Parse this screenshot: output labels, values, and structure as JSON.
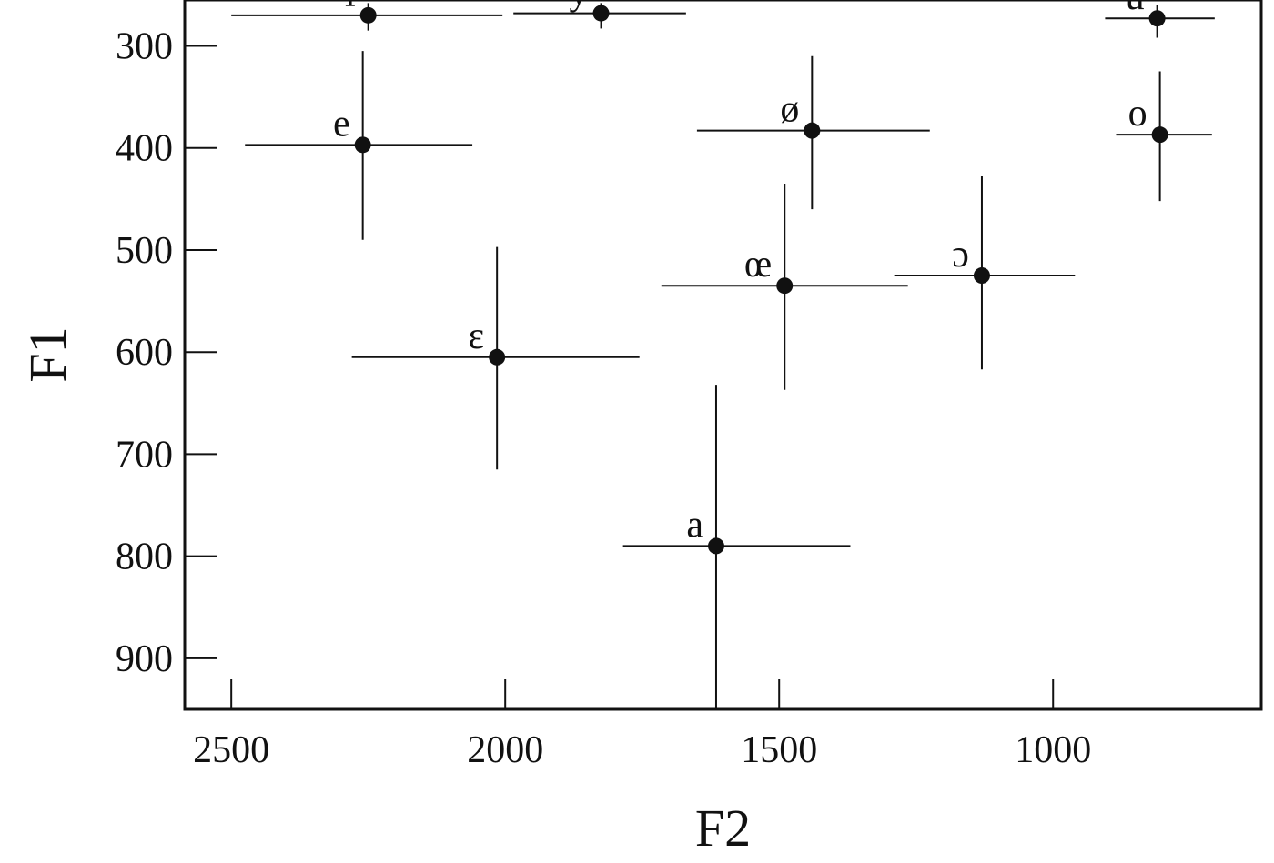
{
  "chart_data": {
    "type": "scatter",
    "xlabel": "F2",
    "ylabel": "F1",
    "x_reversed": true,
    "y_reversed": true,
    "xlim": [
      2585,
      620
    ],
    "ylim": [
      255,
      950
    ],
    "xticks": [
      2500,
      2000,
      1500,
      1000
    ],
    "yticks": [
      300,
      400,
      500,
      600,
      700,
      800,
      900
    ],
    "grid": false,
    "points": [
      {
        "label": "i",
        "x": 2250,
        "y": 270,
        "x_err": [
          2500,
          2005
        ],
        "y_err": [
          258,
          285
        ]
      },
      {
        "label": "y",
        "x": 1825,
        "y": 268,
        "x_err": [
          1985,
          1670
        ],
        "y_err": [
          258,
          283
        ]
      },
      {
        "label": "u",
        "x": 810,
        "y": 273,
        "x_err": [
          905,
          705
        ],
        "y_err": [
          260,
          292
        ]
      },
      {
        "label": "e",
        "x": 2260,
        "y": 397,
        "x_err": [
          2475,
          2060
        ],
        "y_err": [
          305,
          490
        ]
      },
      {
        "label": "ø",
        "x": 1440,
        "y": 383,
        "x_err": [
          1650,
          1225
        ],
        "y_err": [
          310,
          460
        ]
      },
      {
        "label": "o",
        "x": 805,
        "y": 387,
        "x_err": [
          885,
          710
        ],
        "y_err": [
          325,
          452
        ]
      },
      {
        "label": "œ",
        "x": 1490,
        "y": 535,
        "x_err": [
          1715,
          1265
        ],
        "y_err": [
          435,
          637
        ]
      },
      {
        "label": "ɔ",
        "x": 1130,
        "y": 525,
        "x_err": [
          1290,
          960
        ],
        "y_err": [
          427,
          617
        ]
      },
      {
        "label": "ɛ",
        "x": 2015,
        "y": 605,
        "x_err": [
          2280,
          1755
        ],
        "y_err": [
          497,
          715
        ]
      },
      {
        "label": "a",
        "x": 1615,
        "y": 790,
        "x_err": [
          1785,
          1370
        ],
        "y_err": [
          632,
          950
        ]
      }
    ]
  }
}
